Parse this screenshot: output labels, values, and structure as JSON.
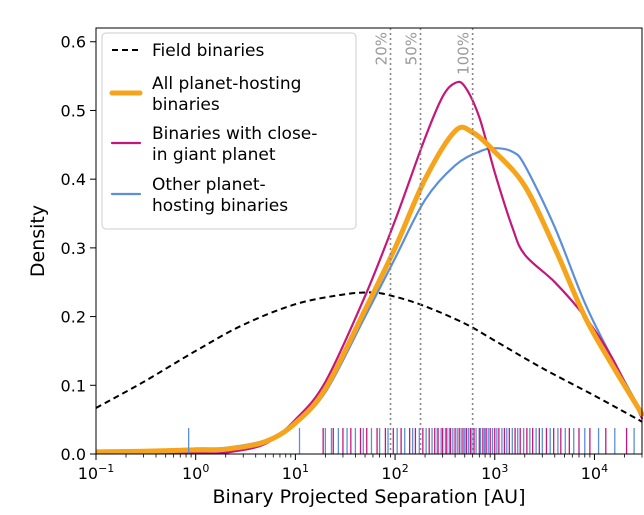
{
  "chart_data": {
    "type": "line",
    "xlabel": "Binary Projected Separation [AU]",
    "ylabel": "Density",
    "xscale": "log",
    "xlim": [
      0.1,
      30000
    ],
    "ylim": [
      0,
      0.62
    ],
    "x_ticks": [
      {
        "value": 0.1,
        "base": "10",
        "exp": "−1"
      },
      {
        "value": 1,
        "base": "10",
        "exp": "0"
      },
      {
        "value": 10,
        "base": "10",
        "exp": "1"
      },
      {
        "value": 100,
        "base": "10",
        "exp": "2"
      },
      {
        "value": 1000,
        "base": "10",
        "exp": "3"
      },
      {
        "value": 10000,
        "base": "10",
        "exp": "4"
      }
    ],
    "y_ticks": [
      "0.0",
      "0.1",
      "0.2",
      "0.3",
      "0.4",
      "0.5",
      "0.6"
    ],
    "grid": false,
    "legend_position": "top-left",
    "series": [
      {
        "name": "Field binaries",
        "color": "#000000",
        "style": "dashed",
        "x": [
          0.1,
          0.3,
          1,
          3,
          10,
          30,
          60,
          100,
          200,
          500,
          1000,
          3000,
          10000,
          30000
        ],
        "y": [
          0.067,
          0.105,
          0.15,
          0.188,
          0.218,
          0.232,
          0.235,
          0.229,
          0.215,
          0.19,
          0.165,
          0.125,
          0.085,
          0.047
        ]
      },
      {
        "name": "All planet-hosting binaries",
        "color": "#F5A41B",
        "style": "thick",
        "x": [
          0.1,
          0.3,
          1,
          2,
          5,
          10,
          20,
          50,
          100,
          200,
          400,
          600,
          1000,
          2000,
          4000,
          8000,
          15000,
          30000
        ],
        "y": [
          0.003,
          0.004,
          0.006,
          0.007,
          0.018,
          0.045,
          0.095,
          0.21,
          0.3,
          0.4,
          0.47,
          0.468,
          0.44,
          0.39,
          0.3,
          0.2,
          0.13,
          0.058
        ]
      },
      {
        "name": "Binaries with close-in giant planet",
        "color": "#C4177C",
        "style": "solid",
        "x": [
          0.1,
          1,
          2,
          5,
          10,
          20,
          50,
          100,
          200,
          300,
          400,
          500,
          700,
          1000,
          1500,
          2000,
          4000,
          8000,
          15000,
          30000
        ],
        "y": [
          0.0,
          0.001,
          0.002,
          0.015,
          0.05,
          0.105,
          0.23,
          0.34,
          0.46,
          0.52,
          0.54,
          0.535,
          0.49,
          0.41,
          0.33,
          0.29,
          0.25,
          0.2,
          0.14,
          0.052
        ]
      },
      {
        "name": "Other planet-hosting binaries",
        "color": "#5B8FD9",
        "style": "solid",
        "x": [
          0.1,
          0.3,
          1,
          2,
          5,
          10,
          20,
          50,
          100,
          200,
          400,
          700,
          1000,
          1500,
          2000,
          4000,
          8000,
          15000,
          30000
        ],
        "y": [
          0.003,
          0.005,
          0.008,
          0.009,
          0.02,
          0.045,
          0.09,
          0.2,
          0.285,
          0.37,
          0.42,
          0.44,
          0.445,
          0.44,
          0.42,
          0.33,
          0.22,
          0.14,
          0.06
        ]
      }
    ],
    "vlines": [
      {
        "x": 90,
        "label": "20%"
      },
      {
        "x": 180,
        "label": "50%"
      },
      {
        "x": 600,
        "label": "100%"
      }
    ],
    "rug": {
      "close_in": [
        19,
        24,
        30,
        36,
        45,
        52,
        66,
        80,
        96,
        115,
        140,
        160,
        190,
        220,
        250,
        270,
        300,
        330,
        360,
        400,
        440,
        480,
        520,
        570,
        620,
        700,
        760,
        820,
        900,
        1000,
        1100,
        1250,
        1400,
        1600,
        1800,
        2100,
        2400,
        2800,
        3300,
        3900,
        4600,
        5600,
        7000,
        9000,
        13000,
        21000
      ],
      "other": [
        0.85,
        11,
        20,
        23,
        27,
        33,
        40,
        48,
        58,
        70,
        85,
        105,
        125,
        150,
        175,
        205,
        235,
        265,
        290,
        320,
        350,
        380,
        420,
        460,
        500,
        545,
        590,
        650,
        720,
        790,
        860,
        950,
        1050,
        1180,
        1320,
        1500,
        1700,
        1950,
        2250,
        2600,
        3000,
        3600,
        4300,
        5100,
        6200,
        8000,
        11000,
        16000,
        25000
      ]
    }
  }
}
